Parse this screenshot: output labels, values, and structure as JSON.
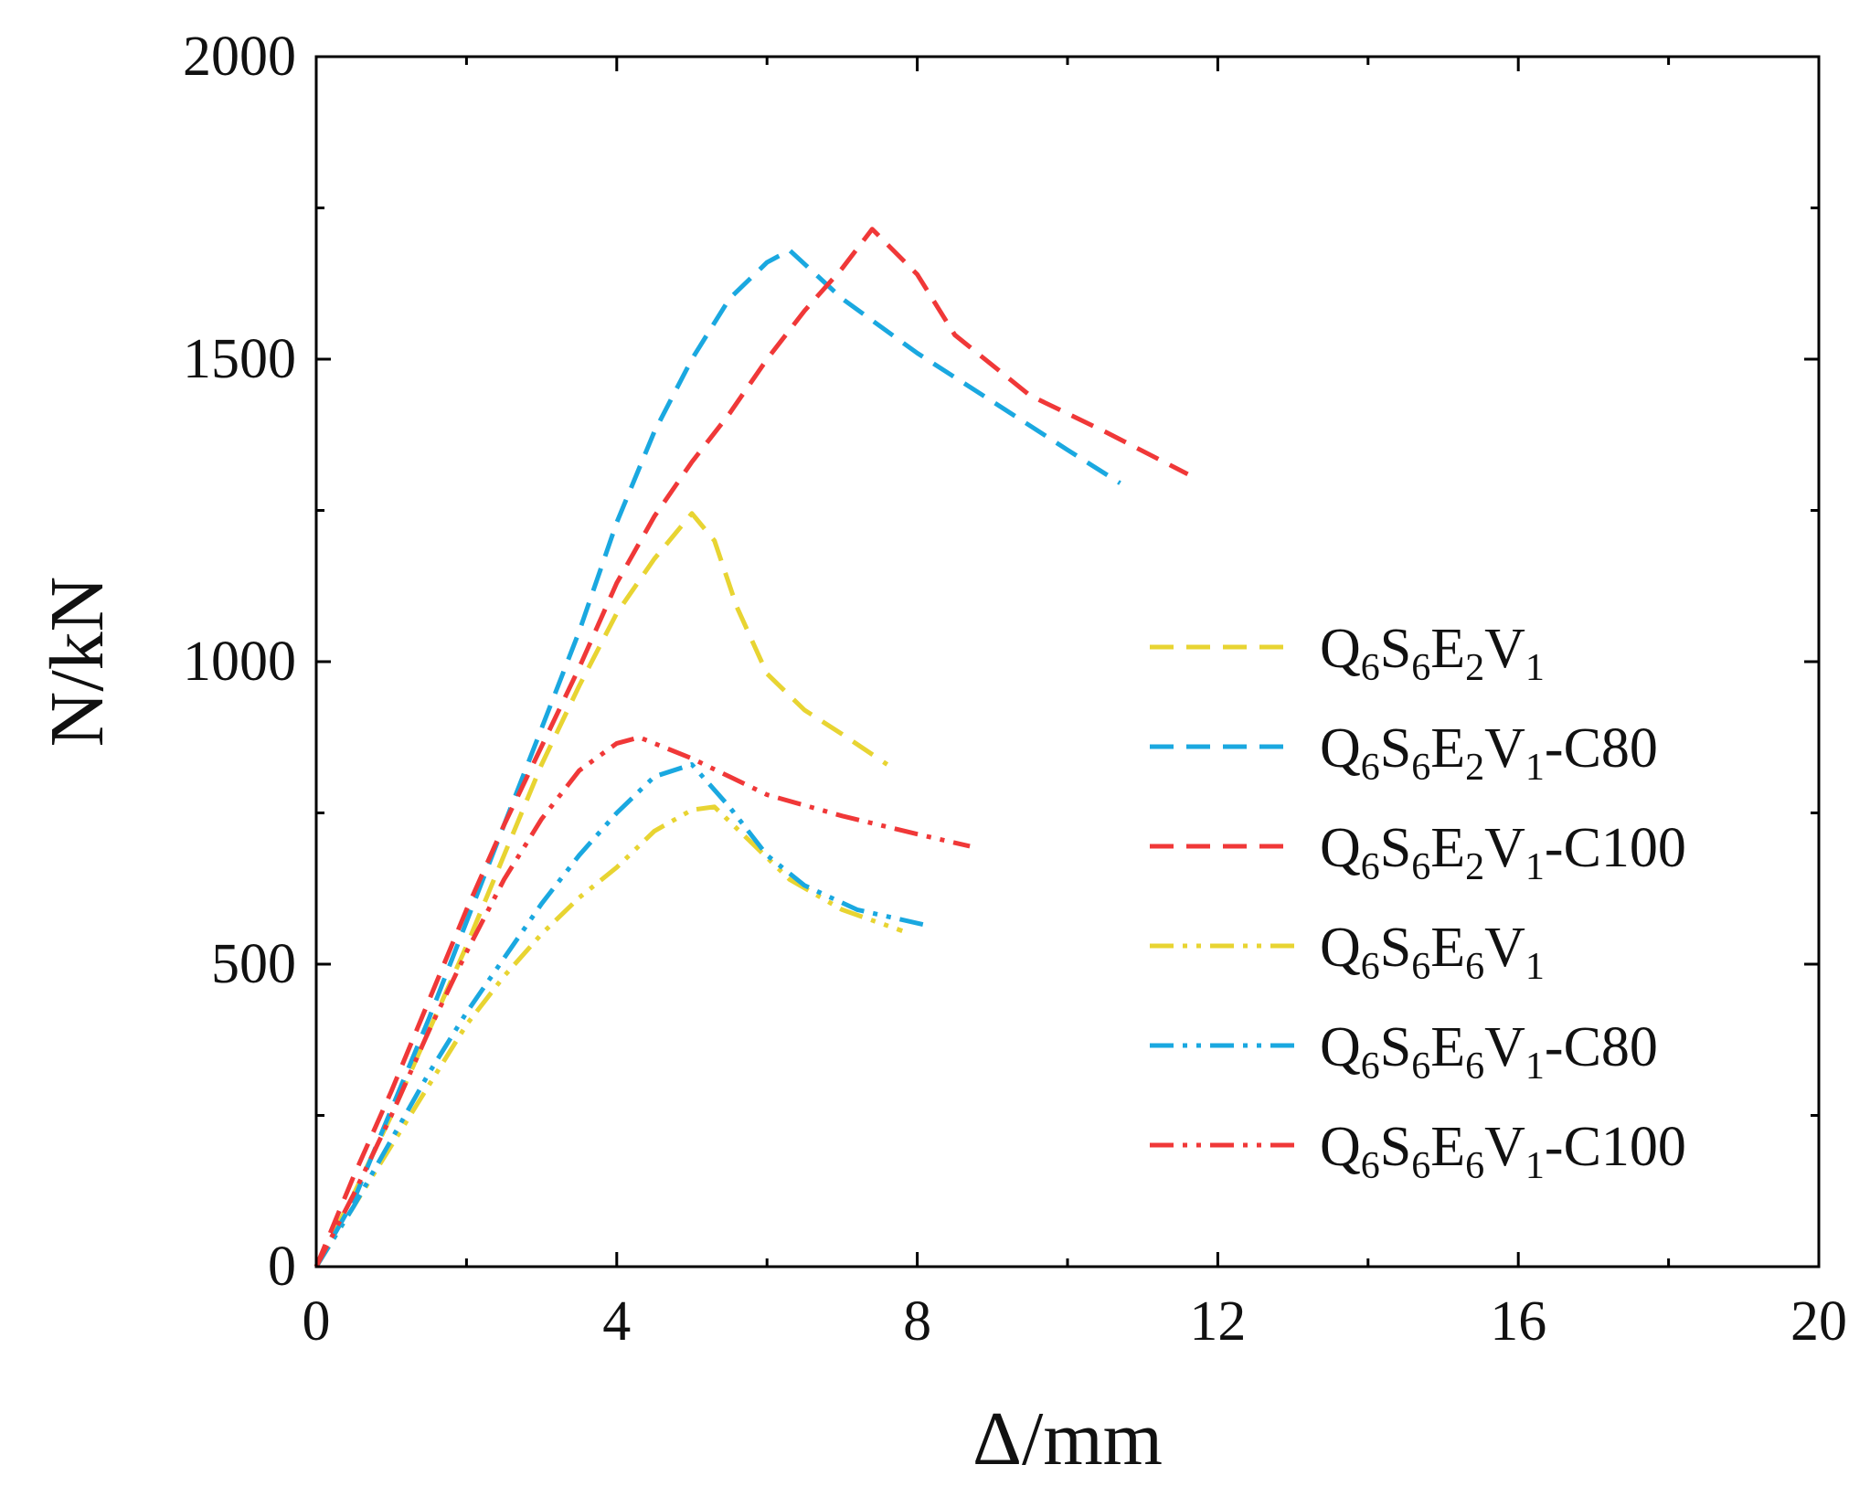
{
  "chart_data": {
    "type": "line",
    "title": "",
    "xlabel": "Δ/mm",
    "ylabel": "N/kN",
    "xlim": [
      0,
      20
    ],
    "ylim": [
      0,
      2000
    ],
    "xticks": [
      0,
      4,
      8,
      12,
      16,
      20
    ],
    "yticks": [
      0,
      500,
      1000,
      1500,
      2000
    ],
    "x_tick_labels": [
      "0",
      "4",
      "8",
      "12",
      "16",
      "20"
    ],
    "y_tick_labels": [
      "0",
      "500",
      "1000",
      "1500",
      "2000"
    ],
    "grid": false,
    "legend_position": "right",
    "series": [
      {
        "name": "Q6S6E2V1",
        "label_parts": [
          [
            "Q",
            ""
          ],
          [
            "6",
            "sub"
          ],
          [
            "S",
            ""
          ],
          [
            "6",
            "sub"
          ],
          [
            "E",
            ""
          ],
          [
            "2",
            "sub"
          ],
          [
            "V",
            ""
          ],
          [
            "1",
            "sub"
          ]
        ],
        "color": "#E8D432",
        "style": "dash",
        "points": [
          [
            0,
            0
          ],
          [
            0.5,
            120
          ],
          [
            1.0,
            250
          ],
          [
            1.5,
            390
          ],
          [
            2.0,
            530
          ],
          [
            2.5,
            680
          ],
          [
            3.0,
            830
          ],
          [
            3.5,
            960
          ],
          [
            4.0,
            1080
          ],
          [
            4.5,
            1170
          ],
          [
            5.0,
            1245
          ],
          [
            5.3,
            1200
          ],
          [
            5.6,
            1090
          ],
          [
            6.0,
            980
          ],
          [
            6.5,
            920
          ],
          [
            7.0,
            880
          ],
          [
            7.6,
            830
          ]
        ]
      },
      {
        "name": "Q6S6E2V1-C80",
        "label_parts": [
          [
            "Q",
            ""
          ],
          [
            "6",
            "sub"
          ],
          [
            "S",
            ""
          ],
          [
            "6",
            "sub"
          ],
          [
            "E",
            ""
          ],
          [
            "2",
            "sub"
          ],
          [
            "V",
            ""
          ],
          [
            "1",
            "sub"
          ],
          [
            "-C80",
            ""
          ]
        ],
        "color": "#1AA8E0",
        "style": "dash",
        "points": [
          [
            0,
            0
          ],
          [
            0.5,
            110
          ],
          [
            1.0,
            260
          ],
          [
            1.5,
            410
          ],
          [
            2.0,
            570
          ],
          [
            2.5,
            730
          ],
          [
            3.0,
            890
          ],
          [
            3.5,
            1050
          ],
          [
            4.0,
            1230
          ],
          [
            4.5,
            1380
          ],
          [
            5.0,
            1500
          ],
          [
            5.5,
            1600
          ],
          [
            6.0,
            1660
          ],
          [
            6.3,
            1680
          ],
          [
            7.0,
            1600
          ],
          [
            8.0,
            1510
          ],
          [
            9.0,
            1430
          ],
          [
            10.0,
            1350
          ],
          [
            10.7,
            1295
          ]
        ]
      },
      {
        "name": "Q6S6E2V1-C100",
        "label_parts": [
          [
            "Q",
            ""
          ],
          [
            "6",
            "sub"
          ],
          [
            "S",
            ""
          ],
          [
            "6",
            "sub"
          ],
          [
            "E",
            ""
          ],
          [
            "2",
            "sub"
          ],
          [
            "V",
            ""
          ],
          [
            "1",
            "sub"
          ],
          [
            "-C100",
            ""
          ]
        ],
        "color": "#F03838",
        "style": "dash",
        "points": [
          [
            0,
            0
          ],
          [
            0.5,
            150
          ],
          [
            1.0,
            290
          ],
          [
            1.5,
            440
          ],
          [
            2.0,
            590
          ],
          [
            2.5,
            730
          ],
          [
            3.0,
            860
          ],
          [
            3.5,
            990
          ],
          [
            4.0,
            1130
          ],
          [
            4.5,
            1240
          ],
          [
            5.0,
            1330
          ],
          [
            5.5,
            1410
          ],
          [
            6.0,
            1500
          ],
          [
            6.5,
            1580
          ],
          [
            7.0,
            1650
          ],
          [
            7.4,
            1715
          ],
          [
            8.0,
            1640
          ],
          [
            8.5,
            1540
          ],
          [
            9.5,
            1440
          ],
          [
            10.5,
            1380
          ],
          [
            11.6,
            1310
          ]
        ]
      },
      {
        "name": "Q6S6E6V1",
        "label_parts": [
          [
            "Q",
            ""
          ],
          [
            "6",
            "sub"
          ],
          [
            "S",
            ""
          ],
          [
            "6",
            "sub"
          ],
          [
            "E",
            ""
          ],
          [
            "6",
            "sub"
          ],
          [
            "V",
            ""
          ],
          [
            "1",
            "sub"
          ]
        ],
        "color": "#E8D432",
        "style": "dashdotdot",
        "points": [
          [
            0,
            0
          ],
          [
            0.5,
            100
          ],
          [
            1.0,
            200
          ],
          [
            1.5,
            300
          ],
          [
            2.0,
            400
          ],
          [
            2.5,
            480
          ],
          [
            3.0,
            550
          ],
          [
            3.5,
            610
          ],
          [
            4.0,
            660
          ],
          [
            4.5,
            720
          ],
          [
            5.0,
            755
          ],
          [
            5.3,
            760
          ],
          [
            5.8,
            700
          ],
          [
            6.3,
            640
          ],
          [
            7.0,
            590
          ],
          [
            7.8,
            555
          ]
        ]
      },
      {
        "name": "Q6S6E6V1-C80",
        "label_parts": [
          [
            "Q",
            ""
          ],
          [
            "6",
            "sub"
          ],
          [
            "S",
            ""
          ],
          [
            "6",
            "sub"
          ],
          [
            "E",
            ""
          ],
          [
            "6",
            "sub"
          ],
          [
            "V",
            ""
          ],
          [
            "1",
            "sub"
          ],
          [
            "-C80",
            ""
          ]
        ],
        "color": "#1AA8E0",
        "style": "dashdotdot",
        "points": [
          [
            0,
            0
          ],
          [
            0.5,
            100
          ],
          [
            1.0,
            210
          ],
          [
            1.5,
            320
          ],
          [
            2.0,
            420
          ],
          [
            2.5,
            510
          ],
          [
            3.0,
            600
          ],
          [
            3.5,
            680
          ],
          [
            4.0,
            750
          ],
          [
            4.5,
            810
          ],
          [
            5.0,
            830
          ],
          [
            5.5,
            760
          ],
          [
            6.0,
            680
          ],
          [
            6.5,
            630
          ],
          [
            7.2,
            590
          ],
          [
            8.1,
            565
          ]
        ]
      },
      {
        "name": "Q6S6E6V1-C100",
        "label_parts": [
          [
            "Q",
            ""
          ],
          [
            "6",
            "sub"
          ],
          [
            "S",
            ""
          ],
          [
            "6",
            "sub"
          ],
          [
            "E",
            ""
          ],
          [
            "6",
            "sub"
          ],
          [
            "V",
            ""
          ],
          [
            "1",
            "sub"
          ],
          [
            "-C100",
            ""
          ]
        ],
        "color": "#F03838",
        "style": "dashdotdot",
        "points": [
          [
            0,
            0
          ],
          [
            0.5,
            120
          ],
          [
            1.0,
            250
          ],
          [
            1.5,
            390
          ],
          [
            2.0,
            520
          ],
          [
            2.5,
            640
          ],
          [
            3.0,
            740
          ],
          [
            3.5,
            820
          ],
          [
            4.0,
            865
          ],
          [
            4.3,
            875
          ],
          [
            5.0,
            840
          ],
          [
            5.5,
            810
          ],
          [
            6.0,
            780
          ],
          [
            7.0,
            745
          ],
          [
            8.0,
            715
          ],
          [
            8.7,
            695
          ]
        ]
      }
    ]
  }
}
